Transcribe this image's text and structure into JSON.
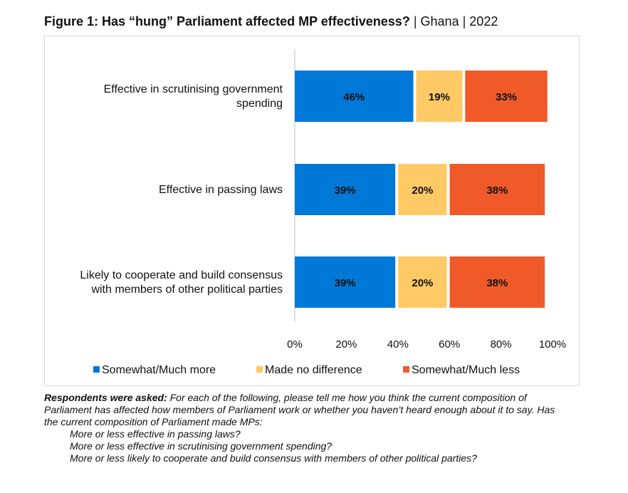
{
  "header": {
    "title_bold": "Figure 1: Has “hung” Parliament affected MP effectiveness?",
    "country": "Ghana",
    "year": "2022",
    "separator": "|"
  },
  "chart_data": {
    "type": "bar",
    "orientation": "horizontal",
    "stacked": true,
    "categories": [
      "Effective in scrutinising government spending",
      "Effective in passing laws",
      "Likely to cooperate and build consensus with members of other political parties"
    ],
    "category_lines": [
      [
        "Effective in scrutinising government",
        "spending"
      ],
      [
        "Effective in passing laws"
      ],
      [
        "Likely to cooperate and build consensus",
        "with members of other political parties"
      ]
    ],
    "series": [
      {
        "name": "Somewhat/Much more",
        "values": [
          46,
          39,
          39
        ],
        "labels": [
          "46%",
          "39%",
          "39%"
        ],
        "color": "#0078d7"
      },
      {
        "name": "Made no difference",
        "values": [
          19,
          20,
          20
        ],
        "labels": [
          "19%",
          "20%",
          "20%"
        ],
        "color": "#ffc966"
      },
      {
        "name": "Somewhat/Much less",
        "values": [
          33,
          38,
          38
        ],
        "labels": [
          "33%",
          "38%",
          "38%"
        ],
        "color": "#f05a28"
      }
    ],
    "xlim": [
      0,
      100
    ],
    "x_ticks": [
      "0%",
      "20%",
      "40%",
      "60%",
      "80%",
      "100%"
    ],
    "grid": false,
    "legend_position": "bottom"
  },
  "note": {
    "lead": "Respondents were asked:",
    "text": " For each of the following, please tell me how you think the current composition of Parliament has affected how members of Parliament work or whether you haven’t heard enough about it to say. Has the current composition of Parliament made MPs:",
    "items": [
      "More or less effective in passing laws?",
      "More or less effective in scrutinising government spending?",
      "More or less likely to cooperate and build consensus with members of other political parties?"
    ]
  }
}
